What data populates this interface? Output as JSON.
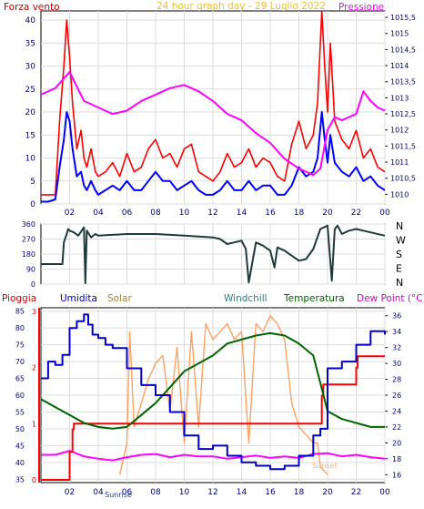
{
  "window": {
    "title": "24 hour graph day - 29 Luglio 2022"
  },
  "colors": {
    "background": "#ffffff",
    "grid": "#dcdcdc",
    "wind_gust": "#ff0000",
    "wind_avg": "#0000ff",
    "pressure": "#ff00ff",
    "direction": "#1f3a3a",
    "humidity": "#0000cc",
    "solar": "#ffa060",
    "temperature": "#006400",
    "dewpoint": "#ff00ff",
    "rain": "#ff0000",
    "windchill_label": "#2f7f7f",
    "title": "#e8c030",
    "axis_text": "#000080",
    "pioggia_label": "#cc0000"
  },
  "chart_data": [
    {
      "id": "wind",
      "type": "line",
      "title": "24 hour graph day - 29 Luglio 2022",
      "left_label": "Forza vento",
      "right_label": "Pressione",
      "x_ticks": [
        "02",
        "04",
        "06",
        "08",
        "10",
        "12",
        "14",
        "16",
        "18",
        "20",
        "22",
        "00"
      ],
      "x_range": [
        0,
        24
      ],
      "ylim_left": [
        0,
        42
      ],
      "left_ticks": [
        "0",
        "5",
        "10",
        "15",
        "20",
        "25",
        "30",
        "35",
        "40"
      ],
      "ylim_right": [
        1009.7,
        1015.7
      ],
      "right_ticks": [
        "1010",
        "1010,5",
        "1011",
        "1011,5",
        "1012",
        "1012,5",
        "1013",
        "1013,5",
        "1014",
        "1014,5",
        "1015",
        "1015,5"
      ],
      "series": [
        {
          "key": "gust",
          "axis": "left",
          "x": [
            0,
            0.5,
            1.0,
            1.3,
            1.6,
            1.8,
            2.0,
            2.2,
            2.5,
            2.8,
            3.0,
            3.2,
            3.5,
            3.8,
            4.0,
            4.5,
            5.0,
            5.5,
            6.0,
            6.5,
            7.0,
            7.5,
            8.0,
            8.5,
            9.0,
            9.5,
            10.0,
            10.5,
            11.0,
            11.5,
            12.0,
            12.5,
            13.0,
            13.5,
            14.0,
            14.5,
            15.0,
            15.5,
            16.0,
            16.5,
            17.0,
            17.5,
            18.0,
            18.5,
            19.0,
            19.3,
            19.6,
            19.8,
            20.0,
            20.2,
            20.5,
            21.0,
            21.5,
            22.0,
            22.5,
            23.0,
            23.5,
            24.0
          ],
          "y": [
            2,
            2,
            2,
            18,
            30,
            40,
            32,
            22,
            12,
            16,
            10,
            8,
            12,
            7,
            6,
            7,
            9,
            6,
            11,
            7,
            8,
            12,
            14,
            10,
            11,
            8,
            12,
            13,
            7,
            6,
            5,
            7,
            11,
            8,
            9,
            12,
            8,
            10,
            9,
            6,
            5,
            13,
            18,
            12,
            15,
            22,
            42,
            30,
            20,
            35,
            18,
            14,
            12,
            16,
            10,
            12,
            8,
            7
          ]
        },
        {
          "key": "average",
          "axis": "left",
          "x": [
            0,
            0.5,
            1.0,
            1.3,
            1.6,
            1.8,
            2.0,
            2.2,
            2.5,
            2.8,
            3.0,
            3.2,
            3.5,
            3.8,
            4.0,
            4.5,
            5.0,
            5.5,
            6.0,
            6.5,
            7.0,
            7.5,
            8.0,
            8.5,
            9.0,
            9.5,
            10.0,
            10.5,
            11.0,
            11.5,
            12.0,
            12.5,
            13.0,
            13.5,
            14.0,
            14.5,
            15.0,
            15.5,
            16.0,
            16.5,
            17.0,
            17.5,
            18.0,
            18.5,
            19.0,
            19.3,
            19.6,
            19.8,
            20.0,
            20.2,
            20.5,
            21.0,
            21.5,
            22.0,
            22.5,
            23.0,
            23.5,
            24.0
          ],
          "y": [
            0.5,
            0.5,
            1,
            8,
            14,
            20,
            18,
            12,
            6,
            7,
            4,
            3,
            5,
            3,
            2,
            3,
            4,
            3,
            5,
            3,
            3,
            5,
            7,
            5,
            5,
            3,
            4,
            5,
            3,
            2,
            2,
            3,
            5,
            3,
            3,
            5,
            3,
            4,
            4,
            2,
            2,
            4,
            8,
            6,
            7,
            10,
            20,
            14,
            9,
            15,
            9,
            7,
            6,
            8,
            5,
            6,
            4,
            3
          ]
        },
        {
          "key": "pressure",
          "axis": "right",
          "x": [
            0,
            1,
            2,
            3,
            4,
            5,
            6,
            7,
            8,
            9,
            10,
            11,
            12,
            13,
            14,
            15,
            16,
            17,
            18,
            19,
            19.5,
            20,
            20.5,
            21,
            22,
            22.5,
            23,
            23.5,
            24
          ],
          "y": [
            1013.1,
            1013.3,
            1013.8,
            1012.9,
            1012.7,
            1012.5,
            1012.6,
            1012.9,
            1013.1,
            1013.3,
            1013.4,
            1013.2,
            1012.9,
            1012.5,
            1012.3,
            1011.9,
            1011.6,
            1011.1,
            1010.8,
            1010.6,
            1010.8,
            1012.0,
            1012.4,
            1012.3,
            1012.5,
            1013.2,
            1012.9,
            1012.7,
            1012.6
          ]
        }
      ]
    },
    {
      "id": "direction",
      "type": "line",
      "x_range": [
        0,
        24
      ],
      "ylim": [
        0,
        360
      ],
      "left_ticks": [
        "0",
        "90",
        "180",
        "270",
        "360"
      ],
      "right_labels": [
        "N",
        "W",
        "S",
        "E",
        "N"
      ],
      "series": [
        {
          "key": "direction",
          "x": [
            0,
            1.5,
            1.6,
            1.8,
            1.9,
            2.0,
            2.3,
            2.6,
            3.0,
            3.1,
            3.2,
            3.5,
            3.8,
            4.0,
            6,
            8,
            10,
            12,
            12.5,
            13,
            13.5,
            14,
            14.3,
            14.5,
            15,
            15.5,
            16,
            16.3,
            16.5,
            17,
            18,
            18.5,
            19,
            19.5,
            20,
            20.3,
            20.5,
            20.7,
            21,
            21.5,
            22,
            23,
            24
          ],
          "y": [
            120,
            120,
            250,
            300,
            330,
            320,
            310,
            290,
            340,
            5,
            320,
            280,
            300,
            290,
            300,
            300,
            290,
            280,
            270,
            240,
            250,
            260,
            210,
            10,
            250,
            230,
            200,
            100,
            220,
            200,
            140,
            150,
            210,
            330,
            350,
            20,
            330,
            350,
            300,
            320,
            330,
            310,
            290
          ]
        }
      ]
    },
    {
      "id": "thermo",
      "type": "line",
      "labels": [
        "Pioggia",
        "Umidita",
        "Solar",
        "Windchill",
        "Temperatura",
        "Dew Point (°C)"
      ],
      "x_ticks": [
        "02",
        "04",
        "06",
        "08",
        "10",
        "12",
        "14",
        "16",
        "18",
        "20",
        "22",
        "00"
      ],
      "x_range": [
        0,
        24
      ],
      "ylim_left": [
        34,
        86
      ],
      "left_ticks": [
        "35",
        "40",
        "45",
        "50",
        "55",
        "60",
        "65",
        "70",
        "75",
        "80",
        "85"
      ],
      "ylim_right": [
        15,
        37
      ],
      "right_ticks": [
        "16",
        "18",
        "20",
        "22",
        "24",
        "26",
        "28",
        "30",
        "32",
        "34",
        "36"
      ],
      "rain_axis_ticks": [
        "0",
        "1",
        "2",
        "3"
      ],
      "rain_ylim": [
        0,
        3
      ],
      "sunrise_label": "Sunrise",
      "sunset_label": "Sunset",
      "series": [
        {
          "key": "humidity",
          "axis": "left",
          "x": [
            0,
            0.5,
            1,
            1.5,
            2,
            2.5,
            3,
            3.3,
            3.6,
            4,
            4.5,
            5,
            6,
            7,
            8,
            9,
            10,
            11,
            12,
            13,
            14,
            15,
            16,
            17,
            18,
            19,
            19.5,
            20,
            21,
            22,
            23,
            24
          ],
          "y": [
            65,
            70,
            69,
            72,
            80,
            82,
            84,
            81,
            78,
            77,
            75,
            74,
            68,
            63,
            60,
            55,
            48,
            44,
            45,
            42,
            40,
            39,
            38,
            39,
            42,
            48,
            50,
            68,
            70,
            75,
            79,
            78
          ]
        },
        {
          "key": "solar",
          "axis": "right",
          "x": [
            5.5,
            6,
            6.2,
            6.5,
            7,
            7.5,
            8,
            8.5,
            9,
            9.5,
            10,
            10.5,
            11,
            11.5,
            12,
            12.5,
            13,
            13.5,
            14,
            14.5,
            15,
            15.5,
            16,
            16.5,
            17,
            17.5,
            18,
            18.5,
            19,
            19.3,
            19.5,
            20
          ],
          "y": [
            16,
            20,
            34,
            22,
            25,
            28,
            30,
            31,
            24,
            32,
            20,
            34,
            22,
            35,
            33,
            34,
            35,
            33,
            34,
            20,
            35,
            34,
            36,
            35,
            33,
            25,
            22,
            21,
            20,
            20,
            17,
            16
          ]
        },
        {
          "key": "temperature",
          "axis": "right",
          "x": [
            0,
            1,
            2,
            3,
            4,
            5,
            6,
            7,
            8,
            9,
            10,
            11,
            12,
            13,
            14,
            15,
            16,
            17,
            18,
            19,
            20,
            21,
            22,
            23,
            24
          ],
          "y": [
            25.5,
            24.5,
            23.5,
            22.5,
            22,
            21.8,
            22,
            23.5,
            25,
            27,
            29,
            30,
            31,
            32.5,
            33,
            33.5,
            33.8,
            33.5,
            32.5,
            31,
            24,
            23,
            22.5,
            22,
            22
          ]
        },
        {
          "key": "dewpoint",
          "axis": "right",
          "x": [
            0,
            1,
            2,
            3,
            4,
            5,
            6,
            7,
            8,
            9,
            10,
            11,
            12,
            13,
            14,
            15,
            16,
            17,
            18,
            19,
            20,
            21,
            22,
            23,
            24
          ],
          "y": [
            18.5,
            18.5,
            19,
            18.3,
            18,
            17.8,
            18.2,
            18.5,
            18.6,
            18.2,
            18.5,
            18.3,
            18.3,
            18,
            18.2,
            18.4,
            18.1,
            18.3,
            18.1,
            18.6,
            18.7,
            18.3,
            18.5,
            18.2,
            18
          ]
        },
        {
          "key": "rain",
          "axis": "rain",
          "x": [
            0,
            1.8,
            2.0,
            2.2,
            2.3,
            19.5,
            19.6,
            19.7,
            21.9,
            22.0,
            22.1,
            24
          ],
          "y": [
            0,
            0,
            0.5,
            0.9,
            1,
            1,
            1.5,
            1.7,
            1.7,
            2.0,
            2.2,
            2.2
          ]
        }
      ]
    }
  ]
}
